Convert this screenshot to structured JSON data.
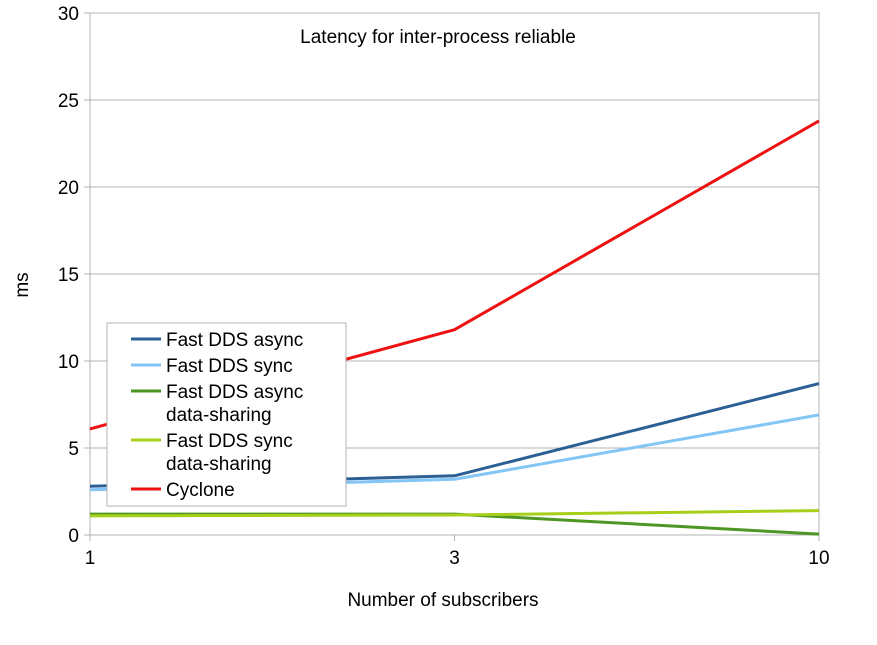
{
  "chart_data": {
    "type": "line",
    "title": "Latency for inter-process reliable",
    "xlabel": "Number of subscribers",
    "ylabel": "ms",
    "categories": [
      "1",
      "3",
      "10"
    ],
    "ylim": [
      0,
      30
    ],
    "yticks": [
      0,
      5,
      10,
      15,
      20,
      25,
      30
    ],
    "grid": true,
    "legend_position": "bottom-left",
    "series": [
      {
        "name": "Fast DDS async",
        "name_lines": [
          "Fast DDS async"
        ],
        "color": "#2c5f93",
        "values": [
          2.8,
          3.4,
          8.7
        ]
      },
      {
        "name": "Fast DDS sync",
        "name_lines": [
          "Fast DDS sync"
        ],
        "color": "#83c5f5",
        "values": [
          2.6,
          3.2,
          6.9
        ]
      },
      {
        "name": "Fast DDS async data-sharing",
        "name_lines": [
          "Fast DDS async",
          "data-sharing"
        ],
        "color": "#4e9624",
        "values": [
          1.2,
          1.2,
          0.05
        ]
      },
      {
        "name": "Fast DDS sync data-sharing",
        "name_lines": [
          "Fast DDS sync",
          "data-sharing"
        ],
        "color": "#a7cf1a",
        "values": [
          1.1,
          1.15,
          1.4
        ]
      },
      {
        "name": "Cyclone",
        "name_lines": [
          "Cyclone"
        ],
        "color": "#ee1111",
        "values": [
          6.1,
          11.8,
          23.8
        ]
      }
    ]
  }
}
